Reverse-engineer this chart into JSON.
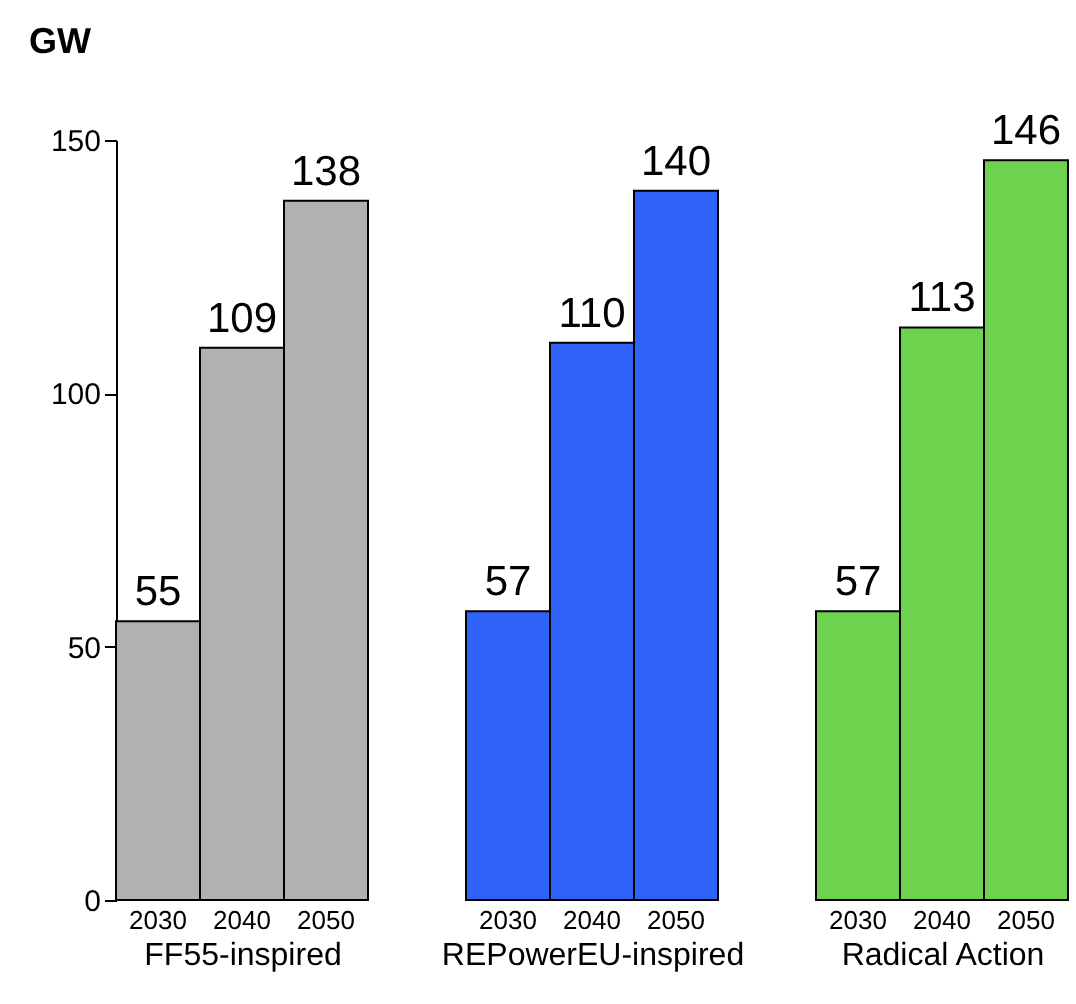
{
  "chart_data": [
    {
      "type": "bar",
      "ylabel": "GW",
      "xlabel": "FF55-inspired",
      "categories": [
        "2030",
        "2040",
        "2050"
      ],
      "values": [
        55,
        109,
        138
      ],
      "color": "#b0b1b3",
      "ylim": [
        0,
        150
      ],
      "yticks": [
        0,
        50,
        100,
        150
      ],
      "data_labels": true,
      "grid": false,
      "legend": false
    },
    {
      "type": "bar",
      "xlabel": "REPowerEU-inspired",
      "categories": [
        "2030",
        "2040",
        "2050"
      ],
      "values": [
        57,
        110,
        140
      ],
      "color": "#2f62f7",
      "ylim": [
        0,
        150
      ],
      "yticks": [
        0,
        50,
        100,
        150
      ],
      "tick_labels": "x",
      "data_labels": true,
      "grid": false,
      "legend": false
    },
    {
      "type": "bar",
      "xlabel": "Radical Action",
      "categories": [
        "2030",
        "2040",
        "2050"
      ],
      "values": [
        57,
        113,
        146
      ],
      "color": "#6dd34f",
      "ylim": [
        0,
        150
      ],
      "yticks": [
        0,
        50,
        100,
        150
      ],
      "tick_labels": "x",
      "data_labels": true,
      "grid": false,
      "legend": false
    }
  ]
}
